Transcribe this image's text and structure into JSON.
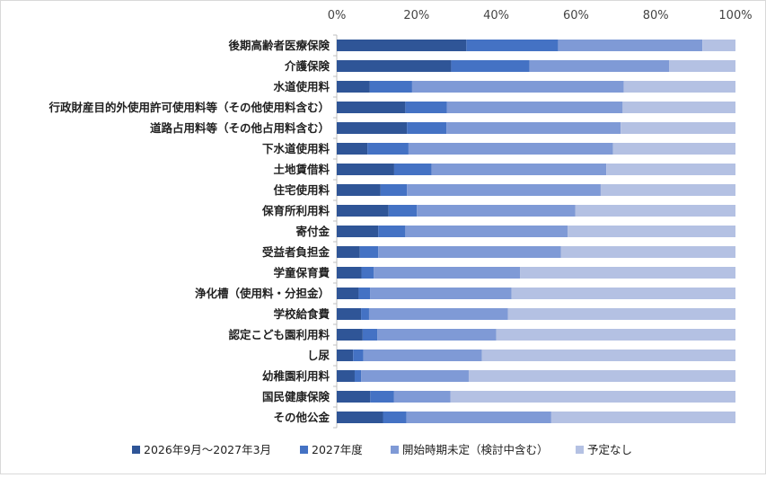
{
  "chart_data": {
    "type": "bar",
    "orientation": "horizontal",
    "stacked": "percent",
    "title": "",
    "xlabel": "",
    "ylabel": "",
    "xlim": [
      0,
      100
    ],
    "x_ticks": [
      "0%",
      "20%",
      "40%",
      "60%",
      "80%",
      "100%"
    ],
    "x_axis_position": "top",
    "grid": false,
    "legend_position": "bottom",
    "categories": [
      "後期高齢者医療保険",
      "介護保険",
      "水道使用料",
      "行政財産目的外使用許可使用料等（その他使用料含む）",
      "道路占用料等（その他占用料含む）",
      "下水道使用料",
      "土地賃借料",
      "住宅使用料",
      "保育所利用料",
      "寄付金",
      "受益者負担金",
      "学童保育費",
      "浄化槽（使用料・分担金）",
      "学校給食費",
      "認定こども園利用料",
      "し尿",
      "幼稚園利用料",
      "国民健康保険",
      "その他公金"
    ],
    "series": [
      {
        "name": "2026年9月～2027年3月",
        "color": "#2f5597",
        "values": [
          32.5,
          28.7,
          8.3,
          17.2,
          17.6,
          7.7,
          14.4,
          11.0,
          13.0,
          10.4,
          5.8,
          6.2,
          5.5,
          6.1,
          6.5,
          4.1,
          4.5,
          8.4,
          11.6
        ]
      },
      {
        "name": "2027年度",
        "color": "#4472c4",
        "values": [
          23.0,
          19.6,
          10.6,
          10.4,
          9.9,
          10.3,
          9.4,
          6.6,
          7.1,
          6.8,
          4.6,
          3.1,
          2.9,
          2.0,
          3.7,
          2.6,
          1.6,
          5.9,
          5.9
        ]
      },
      {
        "name": "開始時期未定（検討中含む）",
        "color": "#7f9ad6",
        "values": [
          36.2,
          35.1,
          53.1,
          44.1,
          43.7,
          51.3,
          43.8,
          48.6,
          39.7,
          40.7,
          45.8,
          36.7,
          35.4,
          34.8,
          29.8,
          29.7,
          27.0,
          14.2,
          36.3
        ]
      },
      {
        "name": "予定なし",
        "color": "#b4c1e3",
        "values": [
          8.3,
          16.6,
          28.0,
          28.3,
          28.8,
          30.7,
          32.4,
          33.8,
          40.2,
          42.1,
          43.8,
          54.0,
          56.2,
          57.1,
          60.0,
          63.6,
          66.9,
          71.5,
          46.2
        ]
      }
    ]
  }
}
